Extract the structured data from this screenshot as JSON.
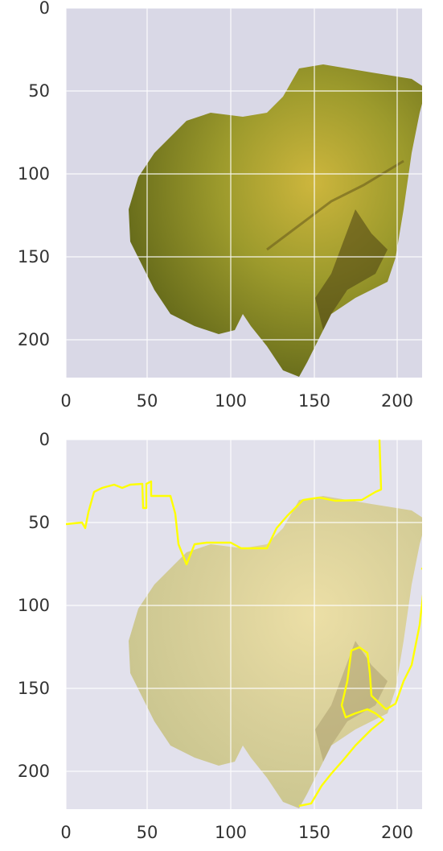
{
  "panels": [
    {
      "id": "top",
      "image": "leaf-photo",
      "y_ticks": [
        "0",
        "50",
        "100",
        "150",
        "200"
      ],
      "x_ticks": [
        "0",
        "50",
        "100",
        "150",
        "200"
      ],
      "overlay": "none"
    },
    {
      "id": "bottom",
      "image": "leaf-photo-washed",
      "y_ticks": [
        "0",
        "50",
        "100",
        "150",
        "200"
      ],
      "x_ticks": [
        "0",
        "50",
        "100",
        "150",
        "200"
      ],
      "overlay": "yellow-contour"
    }
  ],
  "colors": {
    "background": "#d9d8e6",
    "grid": "#ffffff",
    "leaf_dark": "#5e6418",
    "leaf_light": "#c9b53e",
    "contour": "#ffff00"
  },
  "grid": true
}
